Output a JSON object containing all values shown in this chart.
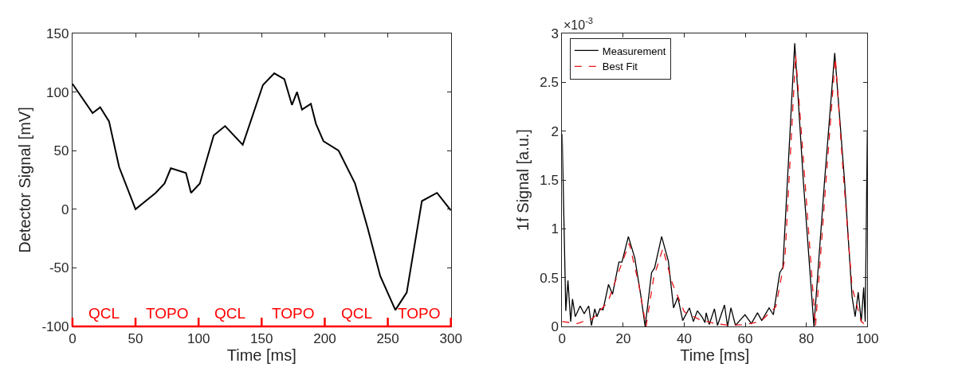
{
  "chart_data": [
    {
      "type": "line",
      "xlabel": "Time [ms]",
      "ylabel": "Detector Signal [mV]",
      "x": [
        0,
        16,
        22,
        29,
        37,
        50,
        66,
        73,
        78,
        90,
        94,
        101,
        112,
        121,
        135,
        151,
        160,
        168,
        174,
        178,
        182,
        189,
        193,
        199,
        211,
        224,
        234,
        244,
        256,
        265,
        277,
        289,
        300
      ],
      "series": [
        {
          "color": "#000000",
          "values": [
            107,
            82,
            87,
            75,
            36,
            0,
            14,
            22,
            35,
            31,
            14,
            22,
            63,
            71,
            55,
            106,
            116,
            111,
            89,
            100,
            85,
            90,
            73,
            58,
            50,
            22,
            -16,
            -57,
            -86,
            -71,
            7,
            14,
            -1
          ]
        }
      ],
      "xlim": [
        0,
        300
      ],
      "ylim": [
        -100,
        150
      ],
      "xticks": [
        0,
        50,
        100,
        150,
        200,
        250,
        300
      ],
      "yticks": [
        -100,
        -50,
        0,
        50,
        100,
        150
      ],
      "annotations": [
        "QCL",
        "TOPO",
        "QCL",
        "TOPO",
        "QCL",
        "TOPO"
      ],
      "legend": false
    },
    {
      "type": "line",
      "xlabel": "Time [ms]",
      "ylabel": "1f Signal [a.u.]",
      "annotations": [
        "×10$^{-3}$"
      ],
      "series": [
        {
          "name": "Measurement",
          "color": "#000000",
          "line_style": "solid",
          "x": [
            0,
            1.2,
            1.9,
            2.8,
            3.4,
            4.3,
            5.9,
            7.2,
            8.7,
            9.6,
            10.7,
            11.4,
            12.4,
            13.4,
            15.2,
            16.5,
            18.6,
            19.6,
            21.7,
            23.8,
            25.8,
            27.2,
            29.3,
            30.3,
            32.6,
            34.8,
            36.5,
            37.9,
            39.5,
            41.7,
            43.0,
            44.3,
            45.8,
            46.8,
            47.2,
            48.2,
            49.9,
            50.9,
            53.2,
            54.2,
            55.3,
            56.8,
            57.9,
            59.9,
            62.0,
            64.0,
            65.4,
            67.8,
            69.2,
            71.3,
            72.3,
            76.2,
            79,
            82.5,
            86,
            89.3,
            92.5,
            95,
            96,
            97,
            98,
            98.8,
            99.3,
            100
          ],
          "values": [
            1.97,
            0.16,
            0.47,
            0.05,
            0.28,
            0.1,
            0.21,
            0.13,
            0.21,
            0.01,
            0.18,
            0.1,
            0.18,
            0.17,
            0.43,
            0.33,
            0.66,
            0.66,
            0.92,
            0.7,
            0.31,
            0.0,
            0.55,
            0.6,
            0.92,
            0.67,
            0.19,
            0.3,
            0.06,
            0.19,
            0.05,
            0.16,
            0.1,
            0.04,
            0.14,
            0.02,
            0.18,
            0.01,
            0.22,
            0.0,
            0.19,
            0.01,
            0.05,
            0.12,
            0.03,
            0.14,
            0.06,
            0.19,
            0.12,
            0.55,
            0.6,
            2.9,
            1.5,
            0.0,
            1.5,
            2.8,
            1.5,
            0.3,
            0.1,
            0.35,
            0.05,
            0.4,
            0.05,
            2.0
          ]
        },
        {
          "name": "Best Fit",
          "color": "#e8161b",
          "line_style": "dashed",
          "x": [
            0,
            5,
            10,
            15,
            19,
            22,
            25,
            27.5,
            30,
            33,
            36,
            40,
            45,
            50,
            55,
            60,
            65,
            70,
            73,
            76.5,
            80,
            83,
            86,
            89.5,
            92,
            95,
            98,
            100
          ],
          "values": [
            0.05,
            0.03,
            0.08,
            0.25,
            0.6,
            0.85,
            0.45,
            0.0,
            0.5,
            0.8,
            0.45,
            0.15,
            0.07,
            0.03,
            0.01,
            0.02,
            0.05,
            0.2,
            0.7,
            2.78,
            1.3,
            0.0,
            1.3,
            2.75,
            1.6,
            0.4,
            0.05,
            0.0
          ]
        }
      ],
      "xlim": [
        0,
        100
      ],
      "ylim": [
        0,
        3
      ],
      "xticks": [
        0,
        20,
        40,
        60,
        80,
        100
      ],
      "yticks": [
        0,
        0.5,
        1,
        1.5,
        2,
        2.5,
        3
      ],
      "legend": "top left"
    }
  ]
}
